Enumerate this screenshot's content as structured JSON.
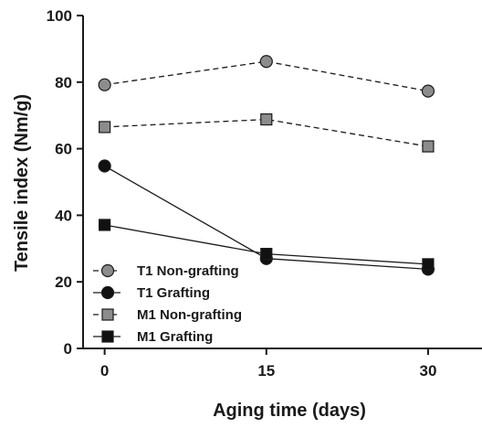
{
  "chart_data": {
    "type": "line",
    "title": "",
    "xlabel": "Aging time (days)",
    "ylabel": "Tensile index (Nm/g)",
    "x": [
      0,
      15,
      30
    ],
    "x_ticks": [
      "0",
      "15",
      "30"
    ],
    "y_ticks": [
      "0",
      "20",
      "40",
      "60",
      "80",
      "100"
    ],
    "xlim": [
      -2,
      35
    ],
    "ylim": [
      0,
      100
    ],
    "grid": false,
    "legend_position": "bottom-left",
    "series": [
      {
        "name": "T1 Non-grafting",
        "values": [
          79.2,
          86.2,
          77.3
        ],
        "marker": "circle",
        "fill": "#8c8c8c",
        "line": "dashed"
      },
      {
        "name": "T1 Grafting",
        "values": [
          54.8,
          27.0,
          23.8
        ],
        "marker": "circle",
        "fill": "#111111",
        "line": "solid"
      },
      {
        "name": "M1 Non-grafting",
        "values": [
          66.5,
          68.8,
          60.7
        ],
        "marker": "square",
        "fill": "#8c8c8c",
        "line": "dashed"
      },
      {
        "name": "M1 Grafting",
        "values": [
          37.1,
          28.4,
          25.3
        ],
        "marker": "square",
        "fill": "#111111",
        "line": "solid"
      }
    ]
  }
}
